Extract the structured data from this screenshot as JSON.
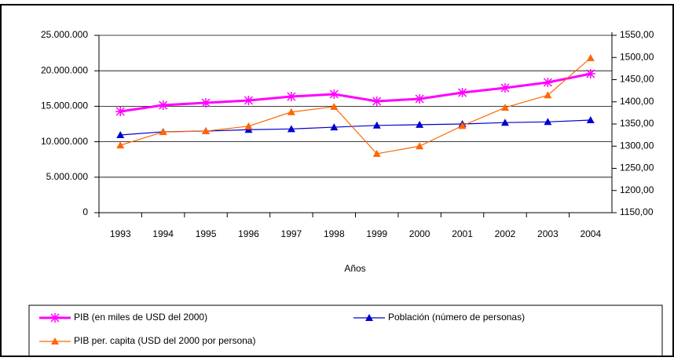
{
  "chart_data": {
    "type": "line",
    "x_label": "Años",
    "categories": [
      "1993",
      "1994",
      "1995",
      "1996",
      "1997",
      "1998",
      "1999",
      "2000",
      "2001",
      "2002",
      "2003",
      "2004"
    ],
    "series": [
      {
        "name": "PIB (en miles de USD del 2000)",
        "color": "#ff00ff",
        "marker": "asterisk",
        "axis": "y",
        "values": [
          14270000,
          15150000,
          15490000,
          15820000,
          16370000,
          16700000,
          15710000,
          16040000,
          16920000,
          17590000,
          18360000,
          19580000
        ]
      },
      {
        "name": "Población (número de personas)",
        "color": "#0000cc",
        "marker": "triangle",
        "axis": "y",
        "values": [
          10950000,
          11400000,
          11500000,
          11700000,
          11800000,
          12050000,
          12300000,
          12400000,
          12500000,
          12700000,
          12800000,
          13050000
        ]
      },
      {
        "name": "PIB per. capita (USD del 2000 por persona)",
        "color": "#ff6600",
        "marker": "triangle",
        "axis": "y2",
        "values": [
          1302,
          1332,
          1334,
          1345,
          1377,
          1389,
          1283,
          1300,
          1346,
          1387,
          1415,
          1499
        ]
      }
    ],
    "ylim": [
      0,
      25000000
    ],
    "yticks": [
      0,
      {
        "value": 5000000,
        "label": "5.000.000"
      },
      {
        "value": 10000000,
        "label": "10.000.000"
      },
      {
        "value": 15000000,
        "label": "15.000.000"
      },
      {
        "value": 20000000,
        "label": "20.000.000"
      },
      {
        "value": 25000000,
        "label": "25.000.000"
      }
    ],
    "y2lim": [
      1150,
      1550
    ],
    "y2ticks": [
      {
        "value": 1150,
        "label": "1150,00"
      },
      {
        "value": 1200,
        "label": "1200,00"
      },
      {
        "value": 1250,
        "label": "1250,00"
      },
      {
        "value": 1300,
        "label": "1300,00"
      },
      {
        "value": 1350,
        "label": "1350,00"
      },
      {
        "value": 1400,
        "label": "1400,00"
      },
      {
        "value": 1450,
        "label": "1450,00"
      },
      {
        "value": 1500,
        "label": "1500,00"
      },
      {
        "value": 1550,
        "label": "1550,00"
      }
    ],
    "grid": true
  }
}
